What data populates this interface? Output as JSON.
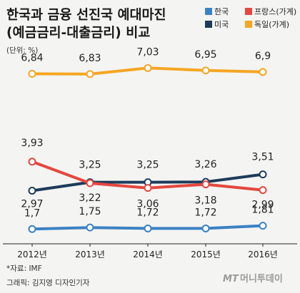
{
  "chart_data": {
    "type": "line",
    "title_line1": "한국과 금융 선진국 예대마진",
    "title_line2": "(예금금리-대출금리) 비교",
    "unit": "(단위: %)",
    "categories": [
      "2012년",
      "2013년",
      "2014년",
      "2015년",
      "2016년"
    ],
    "ylim": [
      1.4,
      7.3
    ],
    "series": [
      {
        "name": "한국",
        "color": "#3b82c4",
        "values": [
          1.7,
          1.75,
          1.72,
          1.72,
          1.81
        ],
        "labels": [
          "1,7",
          "1,75",
          "1,72",
          "1,72",
          "1,81"
        ]
      },
      {
        "name": "미국",
        "color": "#1d3b5a",
        "values": [
          2.97,
          3.25,
          3.25,
          3.26,
          3.51
        ],
        "labels": [
          "2,97",
          "3,25",
          "3,25",
          "3,26",
          "3,51"
        ]
      },
      {
        "name": "프랑스(가계)",
        "color": "#e5473f",
        "values": [
          3.93,
          3.22,
          3.06,
          3.18,
          2.99
        ],
        "labels": [
          "3,93",
          "3,22",
          "3,06",
          "3,18",
          "2,99"
        ]
      },
      {
        "name": "독일(가계)",
        "color": "#f5a623",
        "values": [
          6.84,
          6.83,
          7.03,
          6.95,
          6.9
        ],
        "labels": [
          "6,84",
          "6,83",
          "7,03",
          "6,95",
          "6,9"
        ]
      }
    ],
    "grid": false,
    "legend": "top-right"
  },
  "footer": {
    "source": "*자료: IMF",
    "credit": "그래픽: 김지영 디자인기자"
  },
  "logo": {
    "mark": "MT",
    "name": "머니투데이"
  }
}
